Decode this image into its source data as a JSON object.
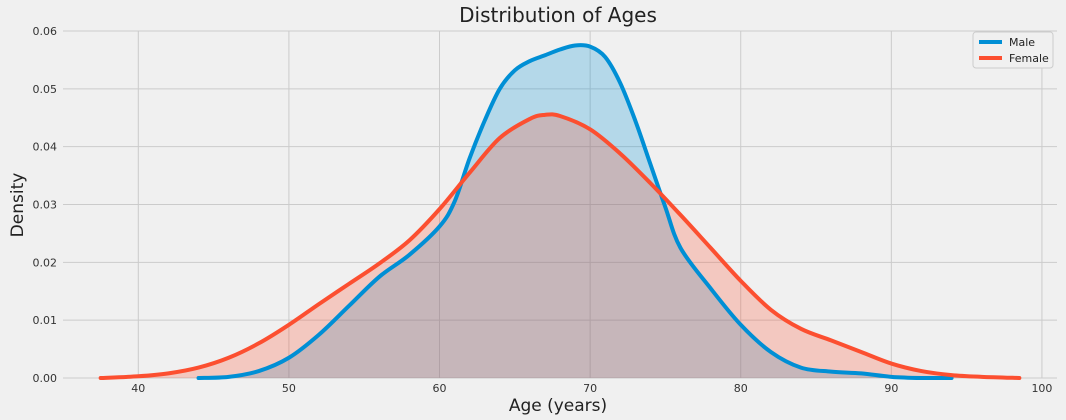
{
  "chart_data": {
    "type": "area",
    "title": "Distribution of Ages",
    "xlabel": "Age (years)",
    "ylabel": "Density",
    "xlim": [
      35,
      101
    ],
    "ylim": [
      0,
      0.06
    ],
    "x_ticks": [
      40,
      50,
      60,
      70,
      80,
      90,
      100
    ],
    "x_tick_labels": [
      "40",
      "50",
      "60",
      "70",
      "80",
      "90",
      "100"
    ],
    "y_ticks": [
      0,
      0.01,
      0.02,
      0.03,
      0.04,
      0.05,
      0.06
    ],
    "y_tick_labels": [
      "0.00",
      "0.01",
      "0.02",
      "0.03",
      "0.04",
      "0.05",
      "0.06"
    ],
    "grid": true,
    "legend_position": "top-right",
    "background_color": "#f0f0f0",
    "series": [
      {
        "name": "Male",
        "color": "#008fd5",
        "fill_color": "#a9d3ea",
        "x": [
          44,
          46,
          48,
          50,
          52,
          54,
          56,
          58,
          60,
          61,
          62,
          63,
          64,
          65,
          66,
          67,
          68,
          69,
          70,
          71,
          72,
          73,
          74,
          75,
          76,
          78,
          80,
          82,
          84,
          86,
          88,
          90,
          92,
          94
        ],
        "y": [
          0.0,
          0.0002,
          0.0012,
          0.0035,
          0.0075,
          0.0125,
          0.0175,
          0.0213,
          0.0262,
          0.0305,
          0.038,
          0.0445,
          0.05,
          0.0532,
          0.0548,
          0.0558,
          0.0568,
          0.0575,
          0.0573,
          0.0555,
          0.051,
          0.0445,
          0.037,
          0.0295,
          0.0225,
          0.0155,
          0.0092,
          0.0045,
          0.0018,
          0.0011,
          0.0008,
          0.0002,
          0.0,
          0.0
        ]
      },
      {
        "name": "Female",
        "color": "#fc4f30",
        "fill_color": "#f6c4bc",
        "x": [
          37.5,
          40,
          42,
          44,
          46,
          48,
          50,
          52,
          54,
          56,
          58,
          60,
          62,
          64,
          66,
          67,
          68,
          70,
          72,
          74,
          76,
          78,
          80,
          82,
          84,
          86,
          88,
          90,
          92,
          94,
          96,
          98.5
        ],
        "y": [
          0.0,
          0.0003,
          0.0008,
          0.0018,
          0.0035,
          0.006,
          0.0092,
          0.0128,
          0.0163,
          0.0198,
          0.0238,
          0.0292,
          0.0355,
          0.0415,
          0.0448,
          0.0455,
          0.0453,
          0.043,
          0.0388,
          0.0337,
          0.0282,
          0.0225,
          0.0168,
          0.0118,
          0.0085,
          0.0065,
          0.0045,
          0.0025,
          0.0012,
          0.0005,
          0.0002,
          0.0
        ]
      }
    ]
  }
}
